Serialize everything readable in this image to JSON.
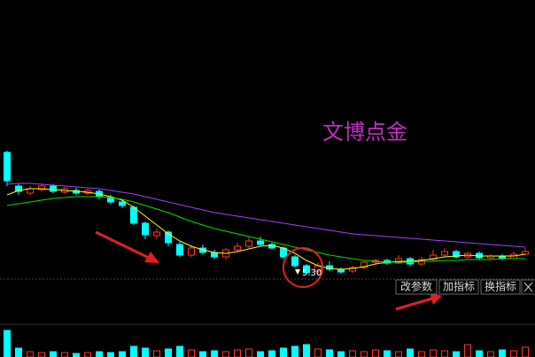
{
  "chart_data": {
    "type": "candlestick",
    "title": "文博点金",
    "low_label": "5.30",
    "open": [
      6.68,
      6.3,
      6.22,
      6.26,
      6.3,
      6.23,
      6.25,
      6.22,
      6.24,
      6.17,
      6.12,
      6.06,
      5.88,
      5.74,
      5.78,
      5.64,
      5.52,
      5.6,
      5.55,
      5.5,
      5.58,
      5.62,
      5.68,
      5.64,
      5.6,
      5.5,
      5.4,
      5.34,
      5.4,
      5.36,
      5.34,
      5.38,
      5.44,
      5.46,
      5.43,
      5.48,
      5.42,
      5.47,
      5.52,
      5.56,
      5.5,
      5.54,
      5.49,
      5.51,
      5.48,
      5.53
    ],
    "close": [
      6.36,
      6.24,
      6.27,
      6.3,
      6.24,
      6.27,
      6.22,
      6.25,
      6.18,
      6.12,
      6.08,
      5.88,
      5.75,
      5.78,
      5.66,
      5.52,
      5.6,
      5.55,
      5.5,
      5.58,
      5.62,
      5.68,
      5.64,
      5.6,
      5.5,
      5.4,
      5.32,
      5.4,
      5.36,
      5.33,
      5.38,
      5.44,
      5.46,
      5.43,
      5.48,
      5.42,
      5.47,
      5.52,
      5.56,
      5.5,
      5.54,
      5.49,
      5.51,
      5.48,
      5.53,
      5.56
    ],
    "high": [
      6.7,
      6.33,
      6.3,
      6.33,
      6.32,
      6.29,
      6.28,
      6.27,
      6.26,
      6.2,
      6.14,
      6.08,
      5.9,
      5.82,
      5.8,
      5.67,
      5.63,
      5.64,
      5.58,
      5.6,
      5.66,
      5.72,
      5.73,
      5.66,
      5.62,
      5.52,
      5.42,
      5.44,
      5.45,
      5.38,
      5.4,
      5.46,
      5.48,
      5.48,
      5.52,
      5.5,
      5.5,
      5.58,
      5.6,
      5.58,
      5.56,
      5.56,
      5.53,
      5.53,
      5.56,
      5.6
    ],
    "low": [
      6.3,
      6.2,
      6.2,
      6.24,
      6.22,
      6.21,
      6.2,
      6.2,
      6.15,
      6.1,
      6.05,
      5.86,
      5.7,
      5.7,
      5.62,
      5.5,
      5.5,
      5.53,
      5.48,
      5.47,
      5.55,
      5.6,
      5.62,
      5.58,
      5.48,
      5.38,
      5.3,
      5.3,
      5.34,
      5.31,
      5.32,
      5.36,
      5.42,
      5.41,
      5.42,
      5.4,
      5.4,
      5.45,
      5.5,
      5.48,
      5.48,
      5.47,
      5.48,
      5.46,
      5.47,
      5.52
    ],
    "volume": [
      30,
      10,
      6,
      5,
      6,
      5,
      4,
      5,
      6,
      5,
      6,
      12,
      10,
      7,
      9,
      12,
      8,
      6,
      7,
      6,
      8,
      9,
      6,
      7,
      10,
      12,
      14,
      9,
      8,
      6,
      7,
      6,
      8,
      7,
      6,
      9,
      6,
      8,
      7,
      6,
      14,
      7,
      6,
      8,
      7,
      11
    ],
    "up_color": "#ff3232",
    "down_color": "#00ffff",
    "ylim": [
      5.0,
      8.0
    ],
    "vlim": [
      0,
      36
    ],
    "ma": [
      {
        "color": "#ffff00",
        "values": [
          6.2,
          6.25,
          6.27,
          6.27,
          6.26,
          6.25,
          6.24,
          6.23,
          6.21,
          6.18,
          6.14,
          6.06,
          5.96,
          5.86,
          5.76,
          5.68,
          5.62,
          5.58,
          5.55,
          5.54,
          5.56,
          5.59,
          5.62,
          5.63,
          5.6,
          5.54,
          5.46,
          5.4,
          5.37,
          5.36,
          5.37,
          5.39,
          5.42,
          5.44,
          5.45,
          5.45,
          5.46,
          5.48,
          5.5,
          5.51,
          5.52,
          5.51,
          5.51,
          5.51,
          5.51,
          5.53
        ]
      },
      {
        "color": "#00e000",
        "values": [
          6.08,
          6.1,
          6.12,
          6.14,
          6.16,
          6.17,
          6.18,
          6.18,
          6.18,
          6.17,
          6.15,
          6.12,
          6.08,
          6.04,
          6.0,
          5.95,
          5.9,
          5.86,
          5.82,
          5.79,
          5.76,
          5.73,
          5.7,
          5.67,
          5.64,
          5.61,
          5.58,
          5.55,
          5.52,
          5.5,
          5.48,
          5.46,
          5.45,
          5.44,
          5.44,
          5.44,
          5.45,
          5.45,
          5.46,
          5.46,
          5.47,
          5.47,
          5.47,
          5.48,
          5.48,
          5.48
        ]
      },
      {
        "color": "#a040ff",
        "values": [
          6.32,
          6.33,
          6.33,
          6.32,
          6.31,
          6.3,
          6.29,
          6.28,
          6.27,
          6.25,
          6.23,
          6.21,
          6.18,
          6.15,
          6.12,
          6.09,
          6.06,
          6.03,
          6.0,
          5.98,
          5.96,
          5.94,
          5.92,
          5.9,
          5.88,
          5.86,
          5.84,
          5.82,
          5.8,
          5.78,
          5.76,
          5.75,
          5.74,
          5.73,
          5.72,
          5.71,
          5.7,
          5.69,
          5.68,
          5.67,
          5.66,
          5.65,
          5.64,
          5.63,
          5.62,
          5.61
        ]
      }
    ]
  },
  "toolbar": {
    "buttons": [
      "改参数",
      "加指标",
      "换指标"
    ]
  }
}
